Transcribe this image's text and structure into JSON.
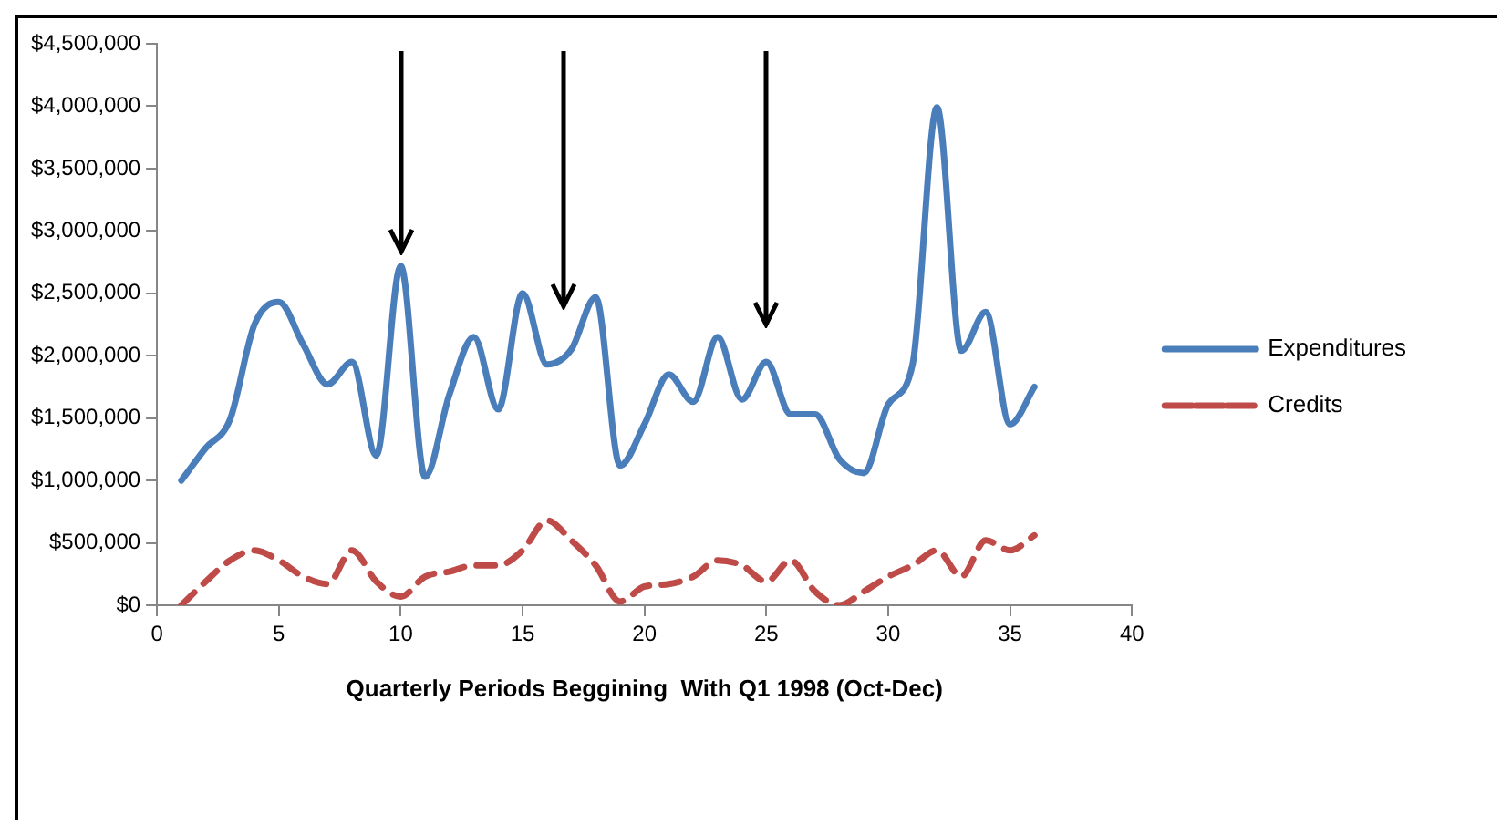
{
  "chart_data": {
    "type": "line",
    "xlabel": "Quarterly Periods Beggining  With Q1 1998 (Oct-Dec)",
    "x": [
      1,
      2,
      3,
      4,
      5,
      6,
      7,
      8,
      9,
      10,
      11,
      12,
      13,
      14,
      15,
      16,
      17,
      18,
      19,
      20,
      21,
      22,
      23,
      24,
      25,
      26,
      27,
      28,
      29,
      30,
      31,
      32,
      33,
      34,
      35,
      36
    ],
    "series": [
      {
        "name": "Expenditures",
        "color": "#4a7ebb",
        "line_style": "solid",
        "values": [
          1000000,
          1260000,
          1490000,
          2250000,
          2430000,
          2090000,
          1770000,
          1950000,
          1200000,
          2720000,
          1030000,
          1690000,
          2150000,
          1570000,
          2500000,
          1930000,
          2050000,
          2470000,
          1120000,
          1450000,
          1850000,
          1630000,
          2150000,
          1650000,
          1950000,
          1530000,
          1530000,
          1170000,
          1060000,
          1610000,
          1930000,
          3990000,
          2040000,
          2350000,
          1450000,
          1750000
        ]
      },
      {
        "name": "Credits",
        "color": "#be4b48",
        "line_style": "dashed",
        "values": [
          0,
          190000,
          360000,
          440000,
          360000,
          230000,
          170000,
          440000,
          190000,
          70000,
          230000,
          270000,
          320000,
          320000,
          440000,
          680000,
          520000,
          320000,
          30000,
          150000,
          170000,
          230000,
          360000,
          320000,
          190000,
          360000,
          110000,
          0,
          110000,
          230000,
          320000,
          440000,
          230000,
          520000,
          440000,
          560000
        ]
      }
    ],
    "xlim": [
      0,
      40
    ],
    "xticks": [
      0,
      5,
      10,
      15,
      20,
      25,
      30,
      35,
      40
    ],
    "ylim": [
      0,
      4500000
    ],
    "yticks": [
      {
        "value": 0,
        "label": "$0"
      },
      {
        "value": 500000,
        "label": "$500,000"
      },
      {
        "value": 1000000,
        "label": "$1,000,000"
      },
      {
        "value": 1500000,
        "label": "$1,500,000"
      },
      {
        "value": 2000000,
        "label": "$2,000,000"
      },
      {
        "value": 2500000,
        "label": "$2,500,000"
      },
      {
        "value": 3000000,
        "label": "$3,000,000"
      },
      {
        "value": 3500000,
        "label": "$3,500,000"
      },
      {
        "value": 4000000,
        "label": "$4,000,000"
      },
      {
        "value": 4500000,
        "label": "$4,500,000"
      }
    ],
    "grid": false,
    "legend": "right",
    "marker": "none"
  }
}
